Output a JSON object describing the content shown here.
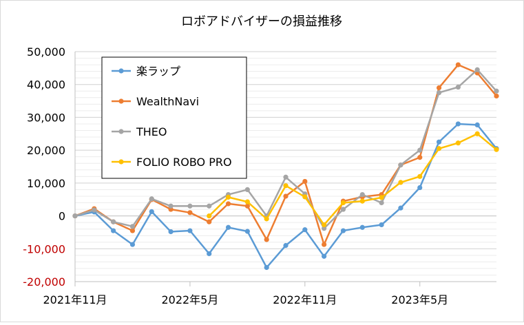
{
  "chart_data": {
    "type": "line",
    "title": "ロボアドバイザーの損益推移",
    "xlabel": "",
    "ylabel": "",
    "ylim": [
      -20000,
      50000
    ],
    "ytick_values": [
      -20000,
      -10000,
      0,
      10000,
      20000,
      30000,
      40000,
      50000
    ],
    "ytick_labels": [
      "-20,000",
      "-10,000",
      "0",
      "10,000",
      "20,000",
      "30,000",
      "40,000",
      "50,000"
    ],
    "negative_tick_color": "#c00000",
    "positive_tick_color": "#000000",
    "x_tick_labels": [
      {
        "label": "2021年11月",
        "index": 0
      },
      {
        "label": "2022年5月",
        "index": 6
      },
      {
        "label": "2022年11月",
        "index": 12
      },
      {
        "label": "2023年5月",
        "index": 18
      }
    ],
    "num_points": 23,
    "grid": "horizontal minor",
    "legend_position": "top-left",
    "series": [
      {
        "name": "楽ラップ",
        "color": "#5b9bd5",
        "values": [
          0,
          1200,
          -4500,
          -8700,
          1300,
          -4800,
          -4500,
          -11500,
          -3500,
          -4700,
          -15700,
          -9000,
          -4200,
          -12300,
          -4500,
          -3500,
          -2700,
          2400,
          8600,
          22500,
          28000,
          27700,
          20500
        ]
      },
      {
        "name": "WealthNavi",
        "color": "#ed7d31",
        "values": [
          0,
          2200,
          -1800,
          -4500,
          5000,
          2000,
          1000,
          -1800,
          3700,
          3000,
          -7200,
          6000,
          10500,
          -8700,
          4500,
          5800,
          6500,
          15500,
          17800,
          39000,
          46000,
          43500,
          36500
        ]
      },
      {
        "name": "THEO",
        "color": "#a5a5a5",
        "values": [
          0,
          1800,
          -1800,
          -3200,
          5200,
          3000,
          3000,
          3000,
          6500,
          8000,
          0,
          11800,
          6700,
          -3800,
          2000,
          6500,
          4000,
          15500,
          20000,
          37500,
          39200,
          44500,
          38000
        ]
      },
      {
        "name": "FOLIO ROBO PRO",
        "color": "#ffc000",
        "values": [
          null,
          null,
          null,
          null,
          null,
          null,
          null,
          0,
          5700,
          4300,
          -900,
          9200,
          5800,
          -2700,
          4000,
          4500,
          5600,
          10200,
          12000,
          20500,
          22200,
          25000,
          20200
        ]
      }
    ]
  }
}
